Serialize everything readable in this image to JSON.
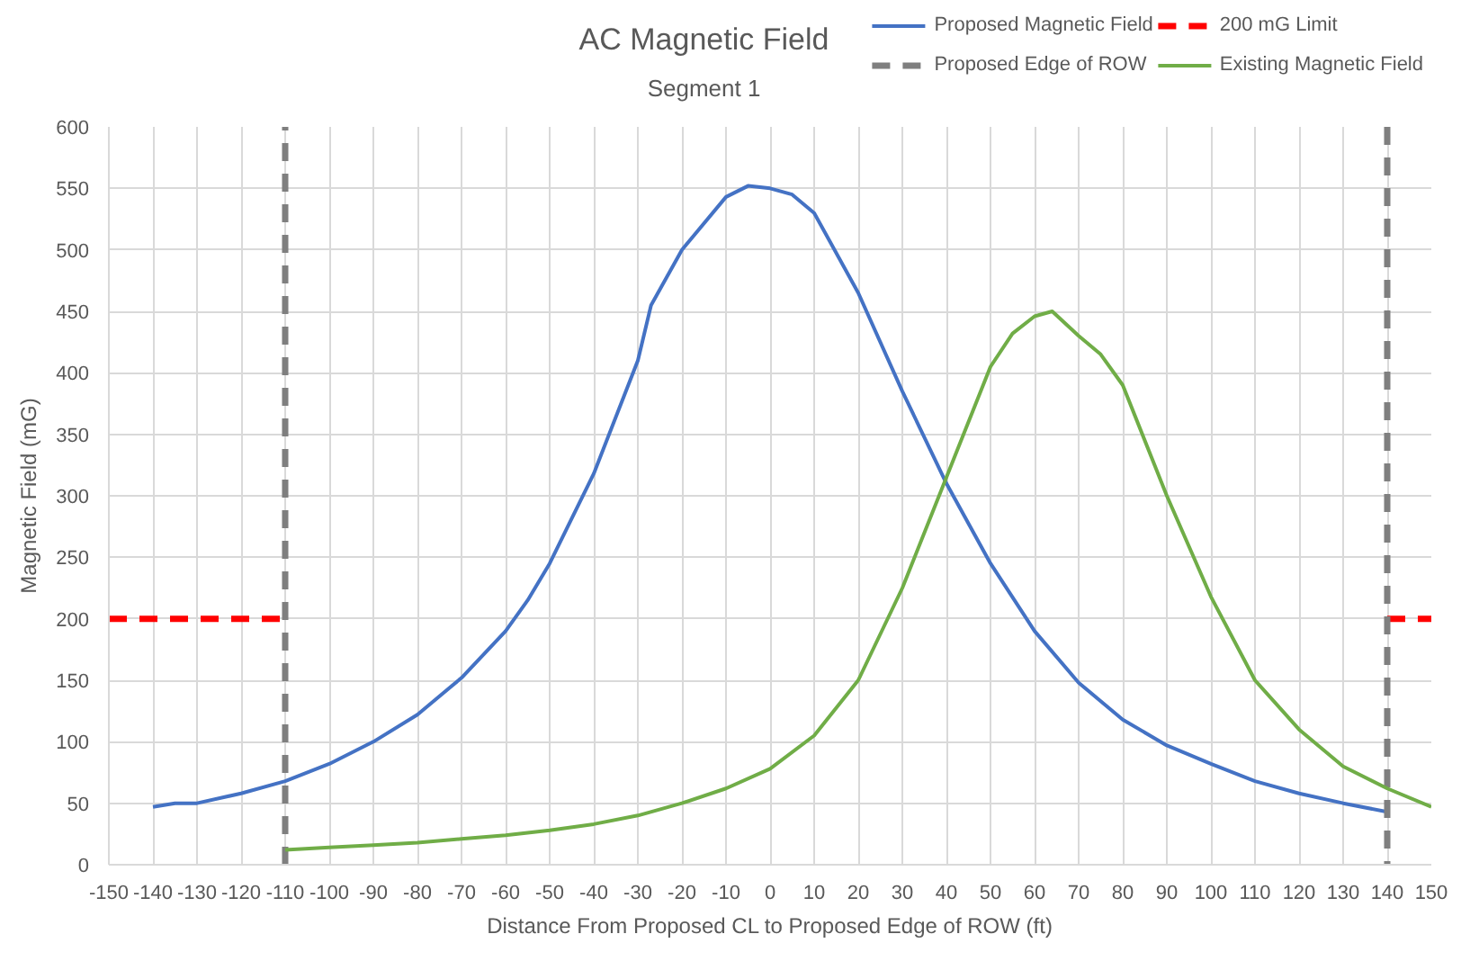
{
  "chart_data": {
    "type": "line",
    "title": "AC Magnetic Field",
    "subtitle": "Segment 1",
    "xlabel": "Distance From Proposed CL to Proposed Edge of ROW (ft)",
    "ylabel": "Magnetic Field (mG)",
    "xlim": [
      -150,
      150
    ],
    "ylim": [
      0,
      600
    ],
    "xticks": [
      -150,
      -140,
      -130,
      -120,
      -110,
      -100,
      -90,
      -80,
      -70,
      -60,
      -50,
      -40,
      -30,
      -20,
      -10,
      0,
      10,
      20,
      30,
      40,
      50,
      60,
      70,
      80,
      90,
      100,
      110,
      120,
      130,
      140,
      150
    ],
    "yticks": [
      0,
      50,
      100,
      150,
      200,
      250,
      300,
      350,
      400,
      450,
      500,
      550,
      600
    ],
    "grid": true,
    "legend": "top right",
    "line_style": "solid",
    "marker": "none",
    "series": [
      {
        "name": "Proposed Magnetic Field",
        "color": "#4472c4",
        "x": [
          -140,
          -135,
          -130,
          -120,
          -110,
          -100,
          -90,
          -80,
          -70,
          -60,
          -55,
          -50,
          -40,
          -30,
          -27,
          -20,
          -10,
          -5,
          0,
          5,
          10,
          20,
          30,
          40,
          50,
          60,
          70,
          80,
          90,
          100,
          110,
          120,
          130,
          140
        ],
        "values": [
          47,
          50,
          50,
          58,
          68,
          82,
          100,
          122,
          152,
          190,
          215,
          245,
          318,
          410,
          455,
          500,
          543,
          552,
          550,
          545,
          530,
          465,
          385,
          310,
          245,
          190,
          148,
          118,
          97,
          82,
          68,
          58,
          50,
          43
        ]
      },
      {
        "name": "200 mG Limit",
        "color": "#ff0000",
        "line_style": "dashed",
        "x": [
          -150,
          -110,
          null,
          140,
          150
        ],
        "values": [
          200,
          200,
          null,
          200,
          200
        ]
      },
      {
        "name": "Proposed Edge of ROW",
        "color": "#7f7f7f",
        "line_style": "dashed",
        "x": [
          -110,
          -110,
          null,
          140,
          140
        ],
        "values": [
          0,
          600,
          null,
          600,
          0
        ]
      },
      {
        "name": "Existing Magnetic Field",
        "color": "#70ad47",
        "x": [
          -110,
          -100,
          -90,
          -80,
          -70,
          -60,
          -50,
          -40,
          -30,
          -20,
          -10,
          0,
          10,
          20,
          30,
          40,
          50,
          55,
          60,
          64,
          70,
          75,
          80,
          90,
          100,
          110,
          120,
          130,
          140,
          150
        ],
        "values": [
          12,
          14,
          16,
          18,
          21,
          24,
          28,
          33,
          40,
          50,
          62,
          78,
          105,
          150,
          225,
          315,
          405,
          432,
          446,
          450,
          430,
          415,
          390,
          300,
          218,
          150,
          110,
          80,
          62,
          47
        ]
      }
    ]
  }
}
